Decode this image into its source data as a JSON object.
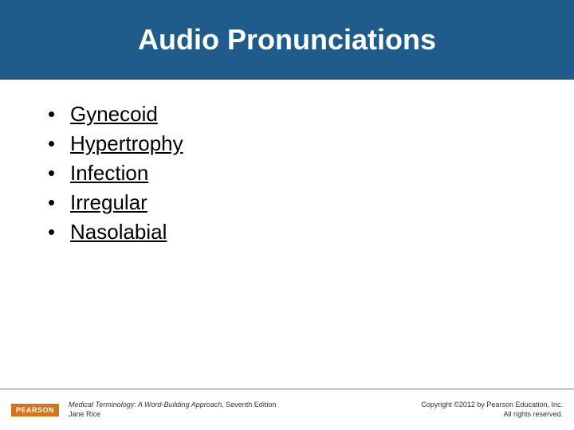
{
  "header": {
    "title": "Audio Pronunciations",
    "background_color": "#1f5c8b",
    "text_color": "#ffffff",
    "title_fontsize": 36
  },
  "terms": [
    {
      "label": "Gynecoid"
    },
    {
      "label": "Hypertrophy"
    },
    {
      "label": "Infection"
    },
    {
      "label": "Irregular"
    },
    {
      "label": "Nasolabial"
    }
  ],
  "term_style": {
    "fontsize": 26,
    "color": "#000000",
    "underline": true
  },
  "footer": {
    "logo_text": "PEARSON",
    "logo_bg": "#d9731a",
    "book_title": "Medical Terminology: A Word-Building Approach",
    "edition": ", Seventh Edition",
    "author": "Jane Rice",
    "copyright_line1": "Copyright ©2012 by Pearson Education, Inc.",
    "copyright_line2": "All rights reserved."
  }
}
